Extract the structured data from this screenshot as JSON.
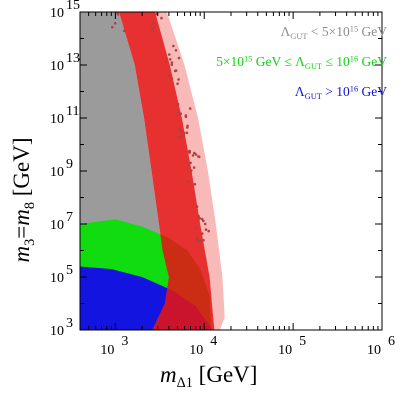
{
  "chart_data": {
    "type": "scatter",
    "xscale": "log",
    "yscale": "log",
    "xlim": [
      400,
      1000000
    ],
    "ylim": [
      1000,
      1000000000000000
    ],
    "xticks": [
      {
        "value": 1000,
        "base": "10",
        "exp": "3"
      },
      {
        "value": 10000,
        "base": "10",
        "exp": "4"
      },
      {
        "value": 100000,
        "base": "10",
        "exp": "5"
      },
      {
        "value": 1000000,
        "base": "10",
        "exp": "6"
      }
    ],
    "yticks": [
      {
        "value": 1000,
        "base": "10",
        "exp": "3"
      },
      {
        "value": 100000,
        "base": "10",
        "exp": "5"
      },
      {
        "value": 10000000,
        "base": "10",
        "exp": "7"
      },
      {
        "value": 1000000000,
        "base": "10",
        "exp": "9"
      },
      {
        "value": 100000000000,
        "base": "10",
        "exp": "11"
      },
      {
        "value": 10000000000000,
        "base": "10",
        "exp": "13"
      },
      {
        "value": 1000000000000000,
        "base": "10",
        "exp": "15"
      }
    ],
    "xlabel": {
      "m": "m",
      "sub": "Δ1",
      "unit": "[GeV]"
    },
    "ylabel": {
      "text": "m3=m8 [GeV]",
      "m3": "m",
      "sub3": "3",
      "eq": "=",
      "m8": "m",
      "sub8": "8",
      "unit": "[GeV]"
    },
    "legend": [
      {
        "color": "#8c8c8c",
        "pre": "Λ",
        "sub": "GUT",
        "mid": " < 5×10",
        "sup": "15",
        "post": " GeV"
      },
      {
        "color": "#0fd30f",
        "pre": "5×10",
        "sup": "15",
        "mid": " GeV ≤ Λ",
        "sub": "GUT",
        "mid2": " ≤ 10",
        "sup2": "16",
        "post": " GeV"
      },
      {
        "color": "#1010d8",
        "pre": "Λ",
        "sub": "GUT",
        "mid": " > 10",
        "sup": "16",
        "post": " GeV"
      }
    ],
    "series": [
      {
        "color": "#9b9b9b",
        "boundary": [
          [
            400,
            1000000000000000.0
          ],
          [
            1100,
            1000000000000000.0
          ],
          [
            1650,
            10000000000000.0
          ],
          [
            2100,
            100000000000.0
          ],
          [
            2550,
            1000000000.0
          ],
          [
            3000,
            20000000.0
          ],
          [
            3400,
            1000000.0
          ],
          [
            3800,
            200000.0
          ],
          [
            4000,
            100000.0
          ],
          [
            3600,
            10000.0
          ],
          [
            2600,
            1000.0
          ],
          [
            400,
            1000.0
          ]
        ]
      },
      {
        "color": "#10dc10",
        "boundary": [
          [
            400,
            10000000.0
          ],
          [
            1000,
            15000000.0
          ],
          [
            2000,
            8000000.0
          ],
          [
            4000,
            3000000.0
          ],
          [
            6500,
            1000000.0
          ],
          [
            9000,
            200000.0
          ],
          [
            11500,
            20000.0
          ],
          [
            12000,
            1000.0
          ],
          [
            400,
            1000.0
          ]
        ]
      },
      {
        "color": "#1414e0",
        "boundary": [
          [
            400,
            250000.0
          ],
          [
            900,
            200000.0
          ],
          [
            2000,
            100000.0
          ],
          [
            4500,
            30000.0
          ],
          [
            8000,
            8000.0
          ],
          [
            12000,
            1200.0
          ],
          [
            12000,
            1000.0
          ],
          [
            400,
            1000.0
          ]
        ]
      },
      {
        "color": "#e41414",
        "opacity": 0.88,
        "boundary": [
          [
            1000,
            1000000000000000.0
          ],
          [
            2800,
            1000000000000000.0
          ],
          [
            4100,
            10000000000000.0
          ],
          [
            5600,
            100000000000.0
          ],
          [
            7200,
            1000000000.0
          ],
          [
            9000,
            10000000.0
          ],
          [
            11500,
            100000.0
          ],
          [
            13000,
            1000.0
          ],
          [
            2600,
            1000.0
          ],
          [
            3600,
            10000.0
          ],
          [
            4000,
            100000.0
          ],
          [
            3800,
            200000.0
          ],
          [
            3400,
            1000000.0
          ],
          [
            3000,
            20000000.0
          ],
          [
            2550,
            1000000000.0
          ],
          [
            2100,
            100000000000.0
          ],
          [
            1650,
            10000000000000.0
          ],
          [
            1100,
            1000000000000000.0
          ]
        ]
      },
      {
        "color": "#f7b1b1",
        "opacity": 0.9,
        "boundary": [
          [
            2800,
            1000000000000000.0
          ],
          [
            3800,
            1000000000000000.0
          ],
          [
            6000,
            10000000000000.0
          ],
          [
            8500,
            100000000000.0
          ],
          [
            11000,
            1000000000.0
          ],
          [
            13500,
            10000000.0
          ],
          [
            16000,
            100000.0
          ],
          [
            17000,
            3000.0
          ],
          [
            15000,
            1000.0
          ],
          [
            13000,
            1000.0
          ],
          [
            11500,
            100000.0
          ],
          [
            9000,
            10000000.0
          ],
          [
            7200,
            1000000000.0
          ],
          [
            5600,
            100000000000.0
          ],
          [
            4100,
            10000000000000.0
          ]
        ]
      }
    ]
  }
}
